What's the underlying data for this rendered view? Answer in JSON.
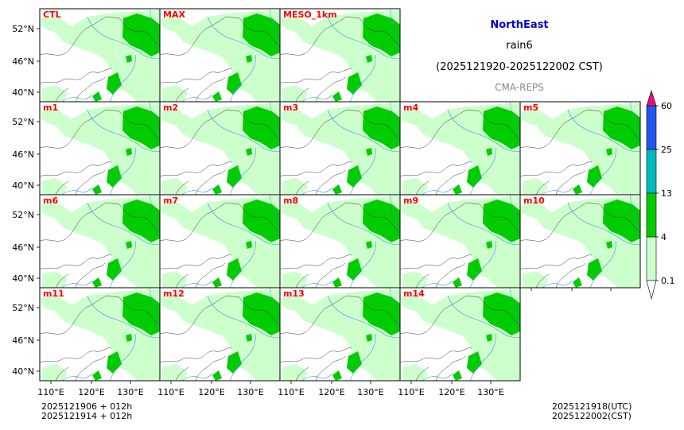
{
  "header": {
    "region": "NorthEast",
    "variable": "rain6",
    "period": "(2025121920-2025122002 CST)",
    "source": "CMA-REPS"
  },
  "colors": {
    "title": "#0000cc",
    "source": "#888888",
    "panel_label": "#ff0000",
    "rain_light": "#ccffcc",
    "rain_mid": "#00cc00",
    "rain_heavy": "#00bbbb",
    "rain_xheavy": "#2255ee",
    "rain_extreme": "#e0117d",
    "river": "#3399dd",
    "border": "#333333"
  },
  "panels": [
    "CTL",
    "MAX",
    "MESO_1km",
    "m1",
    "m2",
    "m3",
    "m4",
    "m5",
    "m6",
    "m7",
    "m8",
    "m9",
    "m10",
    "m11",
    "m12",
    "m13",
    "m14"
  ],
  "axes": {
    "lat_labels": [
      "52°N",
      "46°N",
      "40°N"
    ],
    "lon_labels": [
      "110°E",
      "120°E",
      "130°E"
    ]
  },
  "colorbar": {
    "levels": [
      "0.1",
      "4",
      "13",
      "25",
      "60"
    ]
  },
  "footer": {
    "init_line1": "2025121906  +  012h",
    "init_line2": "2025121914  +  012h",
    "valid_utc": "2025121918(UTC)",
    "valid_cst": "2025122002(CST)"
  }
}
